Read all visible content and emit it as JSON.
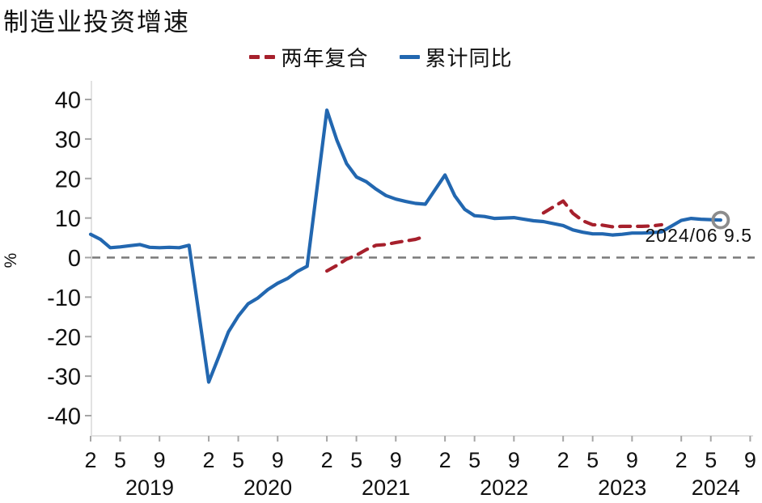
{
  "header": {
    "title": "制造业投资增速"
  },
  "legend": {
    "items": [
      {
        "label": "两年复合",
        "color": "#a6202c",
        "line_style": "dashed"
      },
      {
        "label": "累计同比",
        "color": "#2267b0",
        "line_style": "solid"
      }
    ]
  },
  "axis": {
    "unit_label": "%"
  },
  "annotation": {
    "text": "2024/06 9.5"
  },
  "colors": {
    "two_year_compound": "#a6202c",
    "cumulative_yoy": "#2267b0",
    "zero_line": "#7a7a7a",
    "end_marker": "#8c8c8c",
    "spine": "#d9d9d9",
    "tick": "#a6a6a6",
    "text": "#111111"
  },
  "chart_data": {
    "type": "line",
    "title": "制造业投资增速",
    "ylabel": "%",
    "ylim": [
      -45,
      45
    ],
    "yticks": [
      40,
      30,
      20,
      10,
      0,
      -10,
      -20,
      -30,
      -40
    ],
    "x_encoding": "months since 2019-02",
    "xticks": [
      {
        "m": 0,
        "label": "2"
      },
      {
        "m": 3,
        "label": "5"
      },
      {
        "m": 7,
        "label": "9"
      },
      {
        "m": 12,
        "label": "2"
      },
      {
        "m": 15,
        "label": "5"
      },
      {
        "m": 19,
        "label": "9"
      },
      {
        "m": 24,
        "label": "2"
      },
      {
        "m": 27,
        "label": "5"
      },
      {
        "m": 31,
        "label": "9"
      },
      {
        "m": 36,
        "label": "2"
      },
      {
        "m": 39,
        "label": "5"
      },
      {
        "m": 43,
        "label": "9"
      },
      {
        "m": 48,
        "label": "2"
      },
      {
        "m": 51,
        "label": "5"
      },
      {
        "m": 55,
        "label": "9"
      },
      {
        "m": 60,
        "label": "2"
      },
      {
        "m": 63,
        "label": "5"
      },
      {
        "m": 67,
        "label": "9"
      }
    ],
    "year_labels": [
      {
        "m": 6,
        "label": "2019"
      },
      {
        "m": 18,
        "label": "2020"
      },
      {
        "m": 30,
        "label": "2021"
      },
      {
        "m": 42,
        "label": "2022"
      },
      {
        "m": 54,
        "label": "2023"
      },
      {
        "m": 63.5,
        "label": "2024"
      }
    ],
    "zero_reference_line": true,
    "grid": false,
    "legend_position": "top-center",
    "series": [
      {
        "id": "two-year-compound",
        "name": "两年复合",
        "color": "#a6202c",
        "dashed": true,
        "segments": [
          [
            [
              24,
              -3.4
            ],
            [
              25,
              -2.0
            ],
            [
              26,
              -0.4
            ],
            [
              27,
              0.6
            ],
            [
              28,
              2.0
            ],
            [
              29,
              3.1
            ],
            [
              30,
              3.3
            ],
            [
              31,
              3.8
            ],
            [
              32,
              4.2
            ],
            [
              33,
              4.6
            ],
            [
              34,
              5.4
            ]
          ],
          [
            [
              46,
              11.3
            ],
            [
              48,
              14.3
            ],
            [
              49,
              11.2
            ],
            [
              50,
              9.3
            ],
            [
              51,
              8.3
            ],
            [
              52,
              8.2
            ],
            [
              53,
              7.8
            ],
            [
              54,
              7.9
            ],
            [
              55,
              7.9
            ],
            [
              56,
              7.9
            ],
            [
              57,
              8.0
            ],
            [
              58,
              8.3
            ]
          ]
        ]
      },
      {
        "id": "cumulative-yoy",
        "name": "累计同比",
        "color": "#2267b0",
        "dashed": false,
        "segments": [
          [
            [
              0,
              5.9
            ],
            [
              1,
              4.6
            ],
            [
              2,
              2.5
            ],
            [
              3,
              2.7
            ],
            [
              4,
              3.0
            ],
            [
              5,
              3.3
            ],
            [
              6,
              2.6
            ],
            [
              7,
              2.5
            ],
            [
              8,
              2.6
            ],
            [
              9,
              2.5
            ],
            [
              10,
              3.1
            ],
            [
              12,
              -31.5
            ],
            [
              13,
              -25.2
            ],
            [
              14,
              -18.8
            ],
            [
              15,
              -14.8
            ],
            [
              16,
              -11.7
            ],
            [
              17,
              -10.2
            ],
            [
              18,
              -8.1
            ],
            [
              19,
              -6.5
            ],
            [
              20,
              -5.3
            ],
            [
              21,
              -3.5
            ],
            [
              22,
              -2.2
            ],
            [
              24,
              37.3
            ],
            [
              25,
              29.8
            ],
            [
              26,
              23.8
            ],
            [
              27,
              20.4
            ],
            [
              28,
              19.2
            ],
            [
              29,
              17.3
            ],
            [
              30,
              15.7
            ],
            [
              31,
              14.8
            ],
            [
              32,
              14.2
            ],
            [
              33,
              13.7
            ],
            [
              34,
              13.5
            ],
            [
              36,
              20.9
            ],
            [
              37,
              15.6
            ],
            [
              38,
              12.2
            ],
            [
              39,
              10.6
            ],
            [
              40,
              10.4
            ],
            [
              41,
              9.9
            ],
            [
              42,
              10.0
            ],
            [
              43,
              10.1
            ],
            [
              44,
              9.7
            ],
            [
              45,
              9.3
            ],
            [
              46,
              9.1
            ],
            [
              48,
              8.1
            ],
            [
              49,
              7.0
            ],
            [
              50,
              6.4
            ],
            [
              51,
              6.0
            ],
            [
              52,
              6.0
            ],
            [
              53,
              5.7
            ],
            [
              54,
              5.9
            ],
            [
              55,
              6.2
            ],
            [
              56,
              6.2
            ],
            [
              57,
              6.3
            ],
            [
              58,
              6.5
            ],
            [
              60,
              9.4
            ],
            [
              61,
              9.9
            ],
            [
              62,
              9.7
            ],
            [
              63,
              9.6
            ],
            [
              64,
              9.5
            ]
          ]
        ]
      }
    ],
    "end_marker": {
      "m": 64,
      "value": 9.5,
      "label": "2024/06 9.5"
    }
  }
}
